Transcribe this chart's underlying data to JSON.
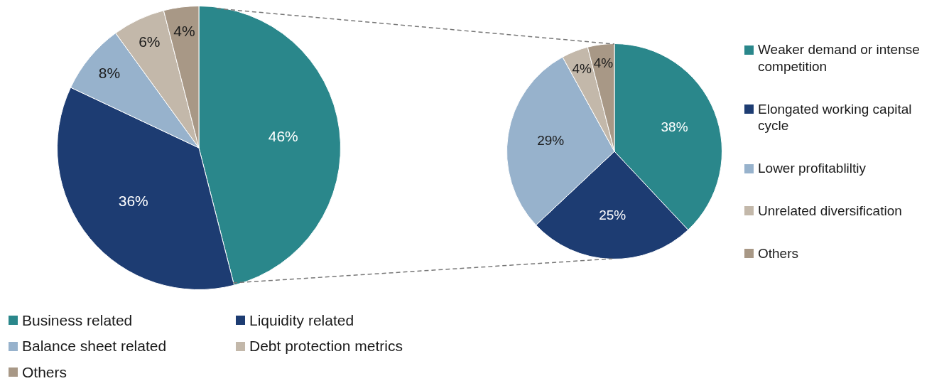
{
  "chart_data": [
    {
      "type": "pie",
      "categories": [
        "Business related",
        "Liquidity related",
        "Balance sheet related",
        "Debt protection metrics",
        "Others"
      ],
      "values": [
        46,
        36,
        8,
        6,
        4
      ],
      "value_labels": [
        "46%",
        "36%",
        "8%",
        "6%",
        "4%"
      ],
      "colors": [
        "#2a878b",
        "#1d3c72",
        "#97b2cc",
        "#c3b8aa",
        "#a89886"
      ],
      "legend": "bottom"
    },
    {
      "type": "pie",
      "categories": [
        "Weaker demand or intense competition",
        "Elongated working capital cycle",
        "Lower profitabliltiy",
        "Unrelated diversification",
        "Others"
      ],
      "values": [
        38,
        25,
        29,
        4,
        4
      ],
      "value_labels": [
        "38%",
        "25%",
        "29%",
        "4%",
        "4%"
      ],
      "colors": [
        "#2a878b",
        "#1d3c72",
        "#97b2cc",
        "#c3b8aa",
        "#a89886"
      ],
      "legend": "right"
    }
  ]
}
